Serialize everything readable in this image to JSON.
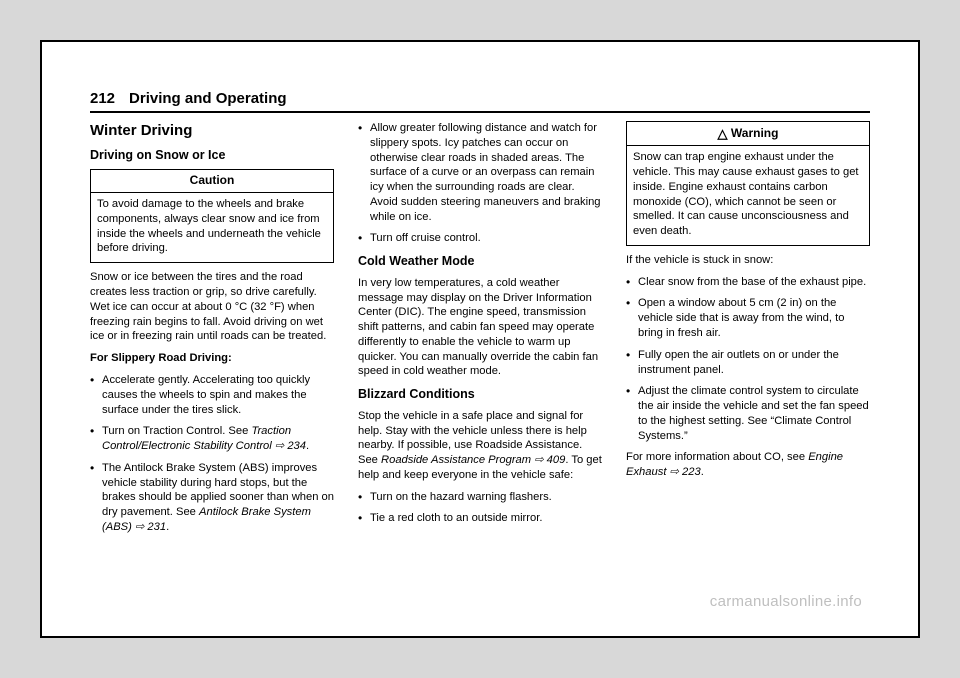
{
  "header": {
    "page_num": "212",
    "chapter": "Driving and Operating"
  },
  "col1": {
    "h2": "Winter Driving",
    "h3": "Driving on Snow or Ice",
    "caution_title": "Caution",
    "caution_body": "To avoid damage to the wheels and brake components, always clear snow and ice from inside the wheels and underneath the vehicle before driving.",
    "p_intro": "Snow or ice between the tires and the road creates less traction or grip, so drive carefully. Wet ice can occur at about 0 °C (32 °F) when freezing rain begins to fall. Avoid driving on wet ice or in freezing rain until roads can be treated.",
    "slippery_heading": "For Slippery Road Driving:",
    "bullets": [
      "Accelerate gently. Accelerating too quickly causes the wheels to spin and makes the surface under the tires slick.",
      "Turn on Traction Control. See ",
      "The Antilock Brake System (ABS) improves vehicle stability during hard stops, but the brakes should be applied sooner than when on dry pavement. See "
    ],
    "ref1": "Traction Control/Electronic Stability Control ⇨ 234",
    "ref2": "Antilock Brake System (ABS) ⇨ 231"
  },
  "col2": {
    "bullets_top": [
      "Allow greater following distance and watch for slippery spots. Icy patches can occur on otherwise clear roads in shaded areas. The surface of a curve or an overpass can remain icy when the surrounding roads are clear. Avoid sudden steering maneuvers and braking while on ice.",
      "Turn off cruise control."
    ],
    "h3a": "Cold Weather Mode",
    "p_cold": "In very low temperatures, a cold weather message may display on the Driver Information Center (DIC). The engine speed, transmission shift patterns, and cabin fan speed may operate differently to enable the vehicle to warm up quicker. You can manually override the cabin fan speed in cold weather mode.",
    "h3b": "Blizzard Conditions",
    "p_blizz_a": "Stop the vehicle in a safe place and signal for help. Stay with the vehicle unless there is help nearby. If possible, use Roadside Assistance. See ",
    "ref_blizz": "Roadside Assistance Program ⇨ 409",
    "p_blizz_b": ". To get help and keep everyone in the vehicle safe:",
    "bullets_bottom": [
      "Turn on the hazard warning flashers.",
      "Tie a red cloth to an outside mirror."
    ]
  },
  "col3": {
    "warn_title": "Warning",
    "warn_body": "Snow can trap engine exhaust under the vehicle. This may cause exhaust gases to get inside. Engine exhaust contains carbon monoxide (CO), which cannot be seen or smelled. It can cause unconsciousness and even death.",
    "p_stuck": "If the vehicle is stuck in snow:",
    "bullets": [
      "Clear snow from the base of the exhaust pipe.",
      "Open a window about 5 cm (2 in) on the vehicle side that is away from the wind, to bring in fresh air.",
      "Fully open the air outlets on or under the instrument panel.",
      "Adjust the climate control system to circulate the air inside the vehicle and set the fan speed to the highest setting. See “Climate Control Systems.”"
    ],
    "p_more_a": "For more information about CO, see ",
    "ref": "Engine Exhaust ⇨ 223",
    "p_more_b": "."
  },
  "watermark": "carmanualsonline.info"
}
